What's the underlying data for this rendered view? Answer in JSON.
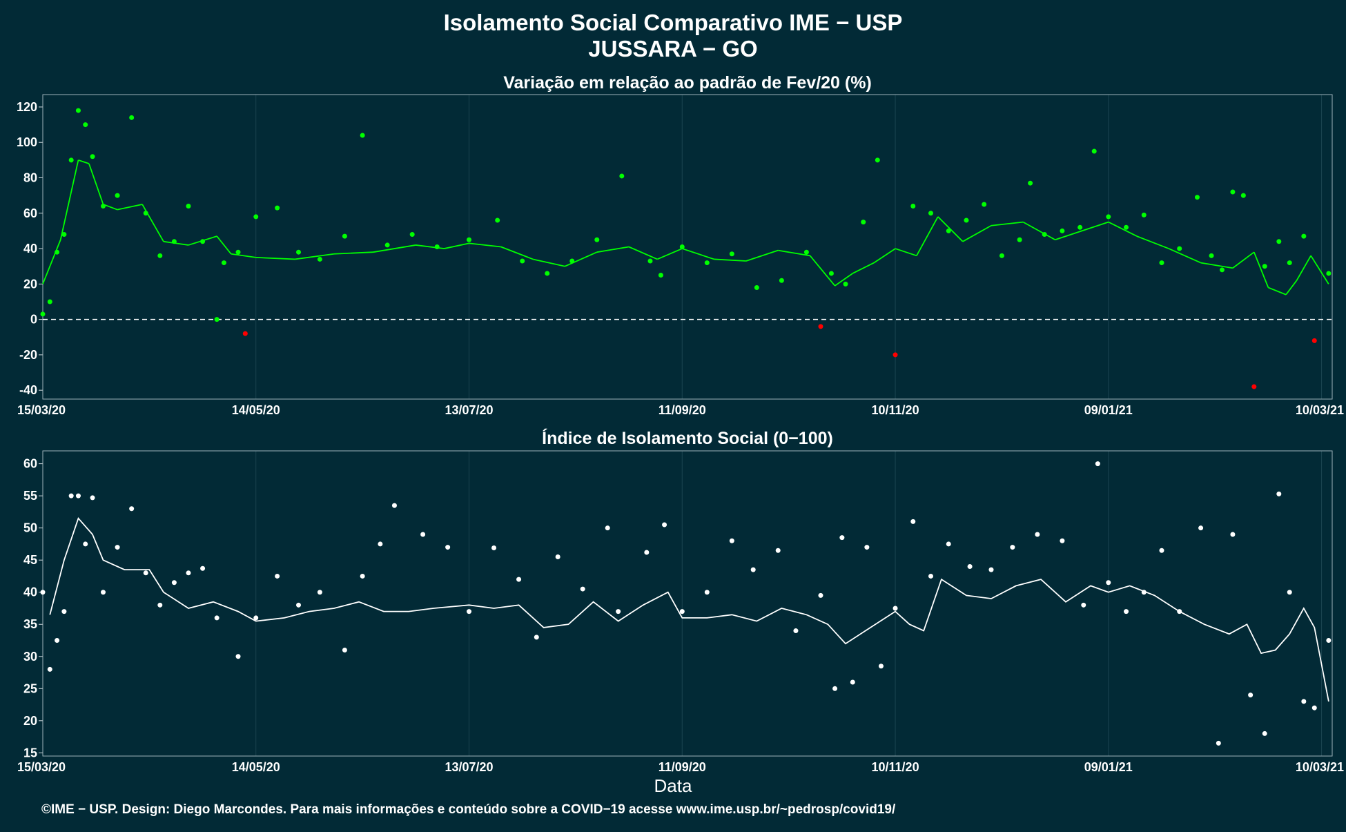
{
  "title_line1": "Isolamento Social Comparativo IME − USP",
  "title_line2": "JUSSARA − GO",
  "footer": "©IME − USP. Design: Diego Marcondes. Para mais informações e conteúdo sobre a COVID−19 acesse www.ime.usp.br/~pedrosp/covid19/",
  "xlabel": "Data",
  "colors": {
    "background": "#022a36",
    "grid": "#1b4450",
    "positive": "#00ff00",
    "negative": "#ff0000",
    "index": "#ffffff"
  },
  "chart_data": [
    {
      "type": "scatter",
      "title": "Variação em relação ao padrão de Fev/20 (%)",
      "xlabel": "",
      "ylabel": "",
      "ylim": [
        -45,
        127
      ],
      "y_ticks": [
        120,
        100,
        80,
        60,
        40,
        20,
        0,
        -20,
        -40
      ],
      "x_ticks": [
        "15/03/20",
        "14/05/20",
        "13/07/20",
        "11/09/20",
        "10/11/20",
        "09/01/21",
        "10/03/21"
      ],
      "reference_line": 0,
      "series": [
        {
          "kind": "daily",
          "x": [
            "15/03/20",
            "17/03/20",
            "19/03/20",
            "21/03/20",
            "23/03/20",
            "25/03/20",
            "27/03/20",
            "29/03/20",
            "01/04/20",
            "05/04/20",
            "09/04/20",
            "13/04/20",
            "17/04/20",
            "21/04/20",
            "25/04/20",
            "29/04/20",
            "03/05/20",
            "05/05/20",
            "09/05/20",
            "11/05/20",
            "14/05/20",
            "20/05/20",
            "26/05/20",
            "01/06/20",
            "08/06/20",
            "13/06/20",
            "20/06/20",
            "27/06/20",
            "04/07/20",
            "13/07/20",
            "21/07/20",
            "28/07/20",
            "04/08/20",
            "11/08/20",
            "18/08/20",
            "25/08/20",
            "02/09/20",
            "05/09/20",
            "11/09/20",
            "18/09/20",
            "25/09/20",
            "02/10/20",
            "09/10/20",
            "16/10/20",
            "20/10/20",
            "23/10/20",
            "27/10/20",
            "01/11/20",
            "05/11/20",
            "10/11/20",
            "15/11/20",
            "20/11/20",
            "25/11/20",
            "30/11/20",
            "05/12/20",
            "10/12/20",
            "15/12/20",
            "18/12/20",
            "22/12/20",
            "27/12/20",
            "01/01/21",
            "05/01/21",
            "09/01/21",
            "14/01/21",
            "19/01/21",
            "24/01/21",
            "29/01/21",
            "03/02/21",
            "07/02/21",
            "10/02/21",
            "13/02/21",
            "16/02/21",
            "19/02/21",
            "22/02/21",
            "26/02/21",
            "01/03/21",
            "05/03/21",
            "08/03/21",
            "12/03/21"
          ],
          "y": [
            3,
            10,
            38,
            48,
            90,
            118,
            110,
            92,
            64,
            70,
            114,
            60,
            36,
            44,
            64,
            44,
            0,
            32,
            38,
            -8,
            58,
            63,
            38,
            34,
            47,
            104,
            42,
            48,
            41,
            45,
            56,
            33,
            26,
            33,
            45,
            81,
            33,
            25,
            41,
            32,
            37,
            18,
            22,
            38,
            -4,
            26,
            20,
            55,
            90,
            -20,
            64,
            60,
            50,
            56,
            65,
            36,
            45,
            77,
            48,
            50,
            52,
            95,
            58,
            52,
            59,
            32,
            40,
            69,
            36,
            28,
            72,
            70,
            -38,
            30,
            44,
            32,
            47,
            -12,
            26
          ]
        },
        {
          "kind": "moving_average",
          "x": [
            "15/03/20",
            "20/03/20",
            "25/03/20",
            "28/03/20",
            "01/04/20",
            "05/04/20",
            "12/04/20",
            "18/04/20",
            "25/04/20",
            "03/05/20",
            "07/05/20",
            "14/05/20",
            "25/05/20",
            "05/06/20",
            "16/06/20",
            "28/06/20",
            "06/07/20",
            "13/07/20",
            "22/07/20",
            "31/07/20",
            "09/08/20",
            "18/08/20",
            "27/08/20",
            "04/09/20",
            "11/09/20",
            "20/09/20",
            "29/09/20",
            "08/10/20",
            "17/10/20",
            "24/10/20",
            "29/10/20",
            "04/11/20",
            "10/11/20",
            "16/11/20",
            "22/11/20",
            "29/11/20",
            "07/12/20",
            "16/12/20",
            "25/12/20",
            "03/01/21",
            "09/01/21",
            "17/01/21",
            "26/01/21",
            "04/02/21",
            "13/02/21",
            "19/02/21",
            "23/02/21",
            "28/02/21",
            "03/03/21",
            "07/03/21",
            "12/03/21"
          ],
          "y": [
            20,
            45,
            90,
            88,
            65,
            62,
            65,
            44,
            42,
            47,
            37,
            35,
            34,
            37,
            38,
            42,
            40,
            43,
            41,
            34,
            30,
            38,
            41,
            34,
            40,
            34,
            33,
            39,
            36,
            19,
            26,
            32,
            40,
            36,
            58,
            44,
            53,
            55,
            45,
            51,
            55,
            47,
            40,
            32,
            29,
            38,
            18,
            14,
            22,
            36,
            20
          ]
        }
      ]
    },
    {
      "type": "scatter",
      "title": "Índice de Isolamento Social (0−100)",
      "xlabel": "Data",
      "ylabel": "",
      "ylim": [
        14.5,
        62
      ],
      "y_ticks": [
        60,
        55,
        50,
        45,
        40,
        35,
        30,
        25,
        20,
        15
      ],
      "x_ticks": [
        "15/03/20",
        "14/05/20",
        "13/07/20",
        "11/09/20",
        "10/11/20",
        "09/01/21",
        "10/03/21"
      ],
      "series": [
        {
          "kind": "daily",
          "x": [
            "15/03/20",
            "17/03/20",
            "19/03/20",
            "21/03/20",
            "23/03/20",
            "25/03/20",
            "27/03/20",
            "29/03/20",
            "01/04/20",
            "05/04/20",
            "09/04/20",
            "13/04/20",
            "17/04/20",
            "21/04/20",
            "25/04/20",
            "29/04/20",
            "03/05/20",
            "09/05/20",
            "14/05/20",
            "20/05/20",
            "26/05/20",
            "01/06/20",
            "08/06/20",
            "13/06/20",
            "18/06/20",
            "22/06/20",
            "30/06/20",
            "07/07/20",
            "13/07/20",
            "20/07/20",
            "27/07/20",
            "01/08/20",
            "07/08/20",
            "14/08/20",
            "21/08/20",
            "24/08/20",
            "01/09/20",
            "06/09/20",
            "11/09/20",
            "18/09/20",
            "25/09/20",
            "01/10/20",
            "08/10/20",
            "13/10/20",
            "20/10/20",
            "24/10/20",
            "26/10/20",
            "29/10/20",
            "02/11/20",
            "06/11/20",
            "10/11/20",
            "15/11/20",
            "20/11/20",
            "25/11/20",
            "01/12/20",
            "07/12/20",
            "13/12/20",
            "20/12/20",
            "27/12/20",
            "02/01/21",
            "06/01/21",
            "09/01/21",
            "14/01/21",
            "19/01/21",
            "24/01/21",
            "29/01/21",
            "04/02/21",
            "09/02/21",
            "13/02/21",
            "18/02/21",
            "22/02/21",
            "26/02/21",
            "01/03/21",
            "05/03/21",
            "08/03/21",
            "12/03/21"
          ],
          "y": [
            40,
            28,
            32.5,
            37,
            55,
            55,
            47.5,
            54.7,
            40,
            47,
            53,
            43,
            38,
            41.5,
            43,
            43.7,
            36,
            30,
            36,
            42.5,
            38,
            40,
            31,
            42.5,
            47.5,
            53.5,
            49,
            47,
            37,
            46.9,
            42,
            33,
            45.5,
            40.5,
            50,
            37,
            46.2,
            50.5,
            37,
            40,
            48,
            43.5,
            46.5,
            34,
            39.5,
            25,
            48.5,
            26,
            47,
            28.5,
            37.5,
            51,
            42.5,
            47.5,
            44,
            43.5,
            47,
            49,
            48,
            38,
            60,
            41.5,
            37,
            40,
            46.5,
            37,
            50,
            16.5,
            49,
            24,
            18,
            55.3,
            40,
            23,
            22,
            32.5
          ]
        },
        {
          "kind": "moving_average",
          "x": [
            "17/03/20",
            "21/03/20",
            "25/03/20",
            "29/03/20",
            "01/04/20",
            "07/04/20",
            "14/04/20",
            "18/04/20",
            "25/04/20",
            "02/05/20",
            "09/05/20",
            "14/05/20",
            "22/05/20",
            "29/05/20",
            "05/06/20",
            "12/06/20",
            "19/06/20",
            "26/06/20",
            "03/07/20",
            "13/07/20",
            "20/07/20",
            "27/07/20",
            "03/08/20",
            "10/08/20",
            "17/08/20",
            "24/08/20",
            "31/08/20",
            "07/09/20",
            "11/09/20",
            "18/09/20",
            "25/09/20",
            "02/10/20",
            "09/10/20",
            "16/10/20",
            "22/10/20",
            "27/10/20",
            "03/11/20",
            "10/11/20",
            "14/11/20",
            "18/11/20",
            "23/11/20",
            "30/11/20",
            "07/12/20",
            "14/12/20",
            "21/12/20",
            "28/12/20",
            "04/01/21",
            "09/01/21",
            "15/01/21",
            "22/01/21",
            "29/01/21",
            "05/02/21",
            "12/02/21",
            "17/02/21",
            "21/02/21",
            "25/02/21",
            "01/03/21",
            "05/03/21",
            "08/03/21",
            "12/03/21"
          ],
          "y": [
            36.5,
            45,
            51.5,
            49,
            45,
            43.5,
            43.5,
            40,
            37.5,
            38.5,
            37,
            35.5,
            36,
            37,
            37.5,
            38.5,
            37,
            37,
            37.5,
            38,
            37.5,
            38,
            34.5,
            35,
            38.5,
            35.5,
            38,
            40,
            36,
            36,
            36.5,
            35.5,
            37.5,
            36.5,
            35,
            32,
            34.5,
            37,
            35,
            34,
            42,
            39.5,
            39,
            41,
            42,
            38.5,
            41,
            40,
            41,
            39.5,
            37,
            35,
            33.5,
            35,
            30.5,
            31,
            33.5,
            37.5,
            34.5,
            23
          ]
        }
      ]
    }
  ]
}
